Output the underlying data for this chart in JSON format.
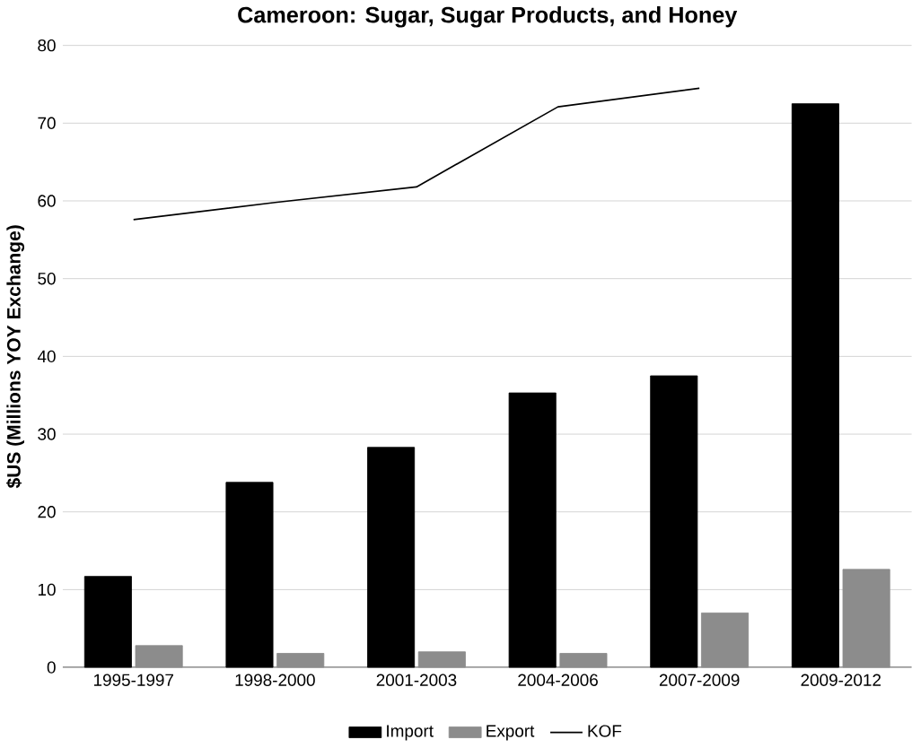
{
  "chart_data": {
    "type": "bar",
    "title": "Cameroon: Sugar, Sugar Products, and Honey",
    "ylabel": "$US (Millions YOY Exchange)",
    "categories": [
      "1995-1997",
      "1998-2000",
      "2001-2003",
      "2004-2006",
      "2007-2009",
      "2009-2012"
    ],
    "series": [
      {
        "name": "Import",
        "color": "#000000",
        "values": [
          11.7,
          23.8,
          28.3,
          35.3,
          37.5,
          72.5
        ]
      },
      {
        "name": "Export",
        "color": "#8c8c8c",
        "values": [
          2.8,
          1.8,
          2.0,
          1.8,
          7.0,
          12.6
        ]
      },
      {
        "name": "KOF",
        "type": "line",
        "color": "#000000",
        "values": [
          57.6,
          59.8,
          61.8,
          72.1,
          74.5,
          null
        ]
      }
    ],
    "ylim": [
      0,
      80
    ],
    "yticks": [
      0,
      10,
      20,
      30,
      40,
      50,
      60,
      70,
      80
    ],
    "grid": "y",
    "legend": "bottom",
    "marker": "none",
    "line_style": "solid"
  }
}
